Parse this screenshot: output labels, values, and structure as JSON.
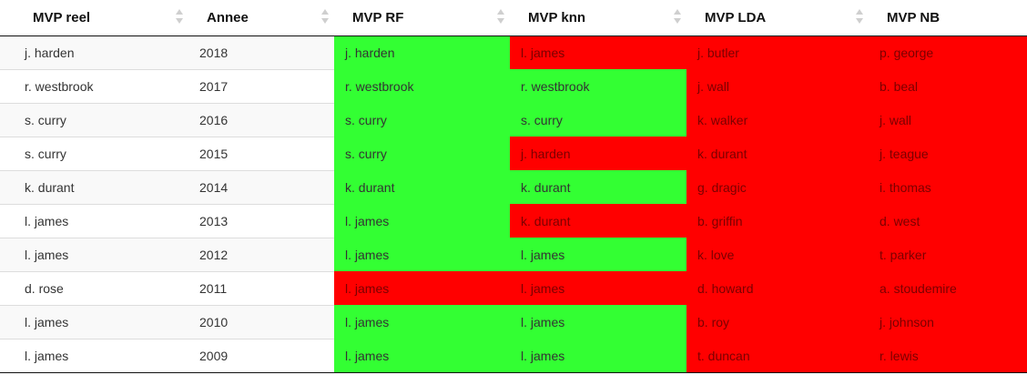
{
  "table": {
    "headers": [
      "MVP reel",
      "Annee",
      "MVP RF",
      "MVP knn",
      "MVP LDA",
      "MVP NB"
    ],
    "colors": {
      "match": "#33ff33",
      "mismatch": "#ff0000"
    },
    "rows": [
      {
        "cells": [
          "j. harden",
          "2018",
          "j. harden",
          "l. james",
          "j. butler",
          "p. george"
        ],
        "status": [
          "plain",
          "plain",
          "green",
          "red",
          "red",
          "red"
        ]
      },
      {
        "cells": [
          "r. westbrook",
          "2017",
          "r. westbrook",
          "r. westbrook",
          "j. wall",
          "b. beal"
        ],
        "status": [
          "plain",
          "plain",
          "green",
          "green",
          "red",
          "red"
        ]
      },
      {
        "cells": [
          "s. curry",
          "2016",
          "s. curry",
          "s. curry",
          "k. walker",
          "j. wall"
        ],
        "status": [
          "plain",
          "plain",
          "green",
          "green",
          "red",
          "red"
        ]
      },
      {
        "cells": [
          "s. curry",
          "2015",
          "s. curry",
          "j. harden",
          "k. durant",
          "j. teague"
        ],
        "status": [
          "plain",
          "plain",
          "green",
          "red",
          "red",
          "red"
        ]
      },
      {
        "cells": [
          "k. durant",
          "2014",
          "k. durant",
          "k. durant",
          "g. dragic",
          "i. thomas"
        ],
        "status": [
          "plain",
          "plain",
          "green",
          "green",
          "red",
          "red"
        ]
      },
      {
        "cells": [
          "l. james",
          "2013",
          "l. james",
          "k. durant",
          "b. griffin",
          "d. west"
        ],
        "status": [
          "plain",
          "plain",
          "green",
          "red",
          "red",
          "red"
        ]
      },
      {
        "cells": [
          "l. james",
          "2012",
          "l. james",
          "l. james",
          "k. love",
          "t. parker"
        ],
        "status": [
          "plain",
          "plain",
          "green",
          "green",
          "red",
          "red"
        ]
      },
      {
        "cells": [
          "d. rose",
          "2011",
          "l. james",
          "l. james",
          "d. howard",
          "a. stoudemire"
        ],
        "status": [
          "plain",
          "plain",
          "red",
          "red",
          "red",
          "red"
        ]
      },
      {
        "cells": [
          "l. james",
          "2010",
          "l. james",
          "l. james",
          "b. roy",
          "j. johnson"
        ],
        "status": [
          "plain",
          "plain",
          "green",
          "green",
          "red",
          "red"
        ]
      },
      {
        "cells": [
          "l. james",
          "2009",
          "l. james",
          "l. james",
          "t. duncan",
          "r. lewis"
        ],
        "status": [
          "plain",
          "plain",
          "green",
          "green",
          "red",
          "red"
        ]
      }
    ]
  }
}
